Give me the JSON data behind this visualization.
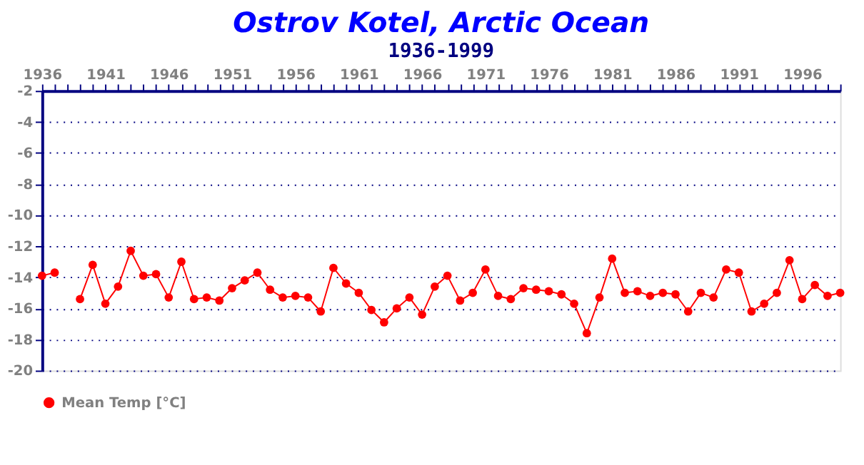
{
  "chart_data": {
    "type": "line",
    "title": "Ostrov Kotel, Arctic Ocean",
    "subtitle": "1936-1999",
    "x": [
      1936,
      1937,
      1938,
      1939,
      1940,
      1941,
      1942,
      1943,
      1944,
      1945,
      1946,
      1947,
      1948,
      1949,
      1950,
      1951,
      1952,
      1953,
      1954,
      1955,
      1956,
      1957,
      1958,
      1959,
      1960,
      1961,
      1962,
      1963,
      1964,
      1965,
      1966,
      1967,
      1968,
      1969,
      1970,
      1971,
      1972,
      1973,
      1974,
      1975,
      1976,
      1977,
      1978,
      1979,
      1980,
      1981,
      1982,
      1983,
      1984,
      1985,
      1986,
      1987,
      1988,
      1989,
      1990,
      1991,
      1992,
      1993,
      1994,
      1995,
      1996,
      1997,
      1998,
      1999
    ],
    "series": [
      {
        "name": "Mean Temp [°C]",
        "color": "#ff0000",
        "values": [
          -13.9,
          -13.7,
          null,
          -15.4,
          -13.2,
          -15.7,
          -14.6,
          -12.3,
          -13.9,
          -13.8,
          -15.3,
          -13.0,
          -15.4,
          -15.3,
          -15.5,
          -14.7,
          -14.2,
          -13.7,
          -14.8,
          -15.3,
          -15.2,
          -15.3,
          -16.2,
          -13.4,
          -14.4,
          -15.0,
          -16.1,
          -16.9,
          -16.0,
          -15.3,
          -16.4,
          -14.6,
          -13.9,
          -15.5,
          -15.0,
          -13.5,
          -15.2,
          -15.4,
          -14.7,
          -14.8,
          -14.9,
          -15.1,
          -15.7,
          -17.6,
          -15.3,
          -12.8,
          -15.0,
          -14.9,
          -15.2,
          -15.0,
          -15.1,
          -16.2,
          -15.0,
          -15.3,
          -13.5,
          -13.7,
          -16.2,
          -15.7,
          -15.0,
          -12.9,
          -15.4,
          -14.5,
          -15.2,
          -15.0
        ]
      }
    ],
    "xlim": [
      1936,
      1999
    ],
    "xticks": [
      1936,
      {
        "value": 1937,
        "label": null
      },
      {
        "value": 1938,
        "label": null
      },
      {
        "value": 1939,
        "label": null
      },
      {
        "value": 1940,
        "label": null
      },
      1941,
      {
        "value": 1942,
        "label": null
      },
      {
        "value": 1943,
        "label": null
      },
      {
        "value": 1944,
        "label": null
      },
      {
        "value": 1945,
        "label": null
      },
      1946,
      {
        "value": 1947,
        "label": null
      },
      {
        "value": 1948,
        "label": null
      },
      {
        "value": 1949,
        "label": null
      },
      {
        "value": 1950,
        "label": null
      },
      1951,
      {
        "value": 1952,
        "label": null
      },
      {
        "value": 1953,
        "label": null
      },
      {
        "value": 1954,
        "label": null
      },
      {
        "value": 1955,
        "label": null
      },
      1956,
      {
        "value": 1957,
        "label": null
      },
      {
        "value": 1958,
        "label": null
      },
      {
        "value": 1959,
        "label": null
      },
      {
        "value": 1960,
        "label": null
      },
      1961,
      {
        "value": 1962,
        "label": null
      },
      {
        "value": 1963,
        "label": null
      },
      {
        "value": 1964,
        "label": null
      },
      {
        "value": 1965,
        "label": null
      },
      1966,
      {
        "value": 1967,
        "label": null
      },
      {
        "value": 1968,
        "label": null
      },
      {
        "value": 1969,
        "label": null
      },
      {
        "value": 1970,
        "label": null
      },
      1971,
      {
        "value": 1972,
        "label": null
      },
      {
        "value": 1973,
        "label": null
      },
      {
        "value": 1974,
        "label": null
      },
      {
        "value": 1975,
        "label": null
      },
      1976,
      {
        "value": 1977,
        "label": null
      },
      {
        "value": 1978,
        "label": null
      },
      {
        "value": 1979,
        "label": null
      },
      {
        "value": 1980,
        "label": null
      },
      1981,
      {
        "value": 1982,
        "label": null
      },
      {
        "value": 1983,
        "label": null
      },
      {
        "value": 1984,
        "label": null
      },
      {
        "value": 1985,
        "label": null
      },
      1986,
      {
        "value": 1987,
        "label": null
      },
      {
        "value": 1988,
        "label": null
      },
      {
        "value": 1989,
        "label": null
      },
      {
        "value": 1990,
        "label": null
      },
      1991,
      {
        "value": 1992,
        "label": null
      },
      {
        "value": 1993,
        "label": null
      },
      {
        "value": 1994,
        "label": null
      },
      {
        "value": 1995,
        "label": null
      },
      1996,
      {
        "value": 1997,
        "label": null
      },
      {
        "value": 1998,
        "label": null
      },
      {
        "value": 1999,
        "label": null
      }
    ],
    "ylim": [
      -20,
      -2
    ],
    "yticks": [
      -20,
      -18,
      -16,
      -14,
      -12,
      -10,
      -8,
      -6,
      -4,
      -2
    ],
    "grid": "y",
    "legend": "bottom",
    "marker": "circle",
    "line_style": "solid"
  }
}
